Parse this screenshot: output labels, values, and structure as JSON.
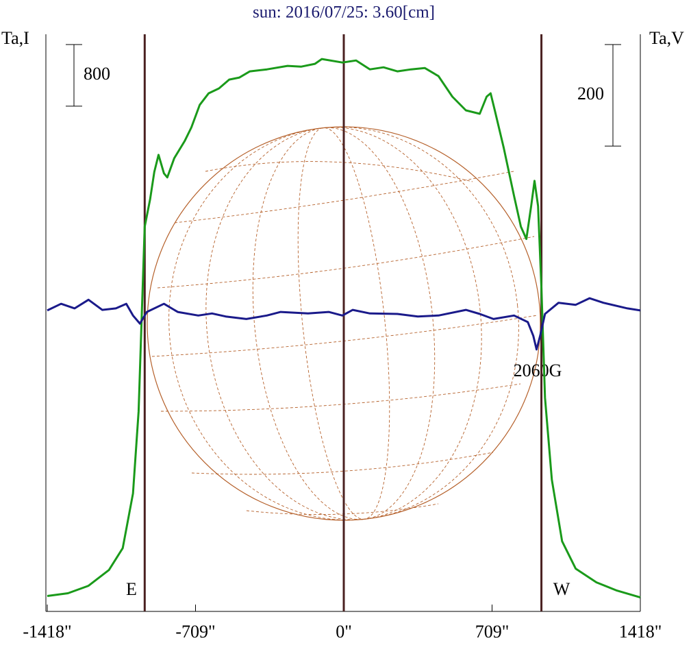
{
  "chart_data": {
    "type": "line",
    "title": "sun: 2016/07/25: 3.60[cm]",
    "ylabel": "Ta,I",
    "y2label": "Ta,V",
    "xlim": [
      -1418,
      1418
    ],
    "xticks": [
      {
        "value": -1418,
        "label": "-1418\""
      },
      {
        "value": -709,
        "label": "-709\""
      },
      {
        "value": 0,
        "label": "0\""
      },
      {
        "value": 709,
        "label": "709\""
      },
      {
        "value": 1418,
        "label": "1418\""
      }
    ],
    "ylim": [
      -200,
      7300
    ],
    "y2lim": [
      -590,
      547
    ],
    "scale_bars": [
      {
        "axis": "y",
        "value": 800
      },
      {
        "axis": "y2",
        "value": 200
      }
    ],
    "limb_lines": [
      -952,
      0,
      945
    ],
    "limb_color": "#4a2020",
    "annotations": [
      "E",
      "W",
      "2060G"
    ],
    "series": [
      {
        "color": "#1a9a1a",
        "axis": "y",
        "x": [
          -1418,
          -1319,
          -1221,
          -1123,
          -1057,
          -1008,
          -981,
          -965,
          -952,
          -926,
          -906,
          -886,
          -860,
          -844,
          -811,
          -761,
          -729,
          -689,
          -646,
          -597,
          -548,
          -499,
          -449,
          -367,
          -269,
          -203,
          -138,
          -105,
          -7,
          59,
          125,
          190,
          256,
          322,
          387,
          453,
          519,
          584,
          650,
          683,
          702,
          722,
          765,
          814,
          847,
          873,
          896,
          912,
          929,
          945,
          962,
          995,
          1044,
          1109,
          1208,
          1306,
          1418
        ],
        "values": [
          0,
          36,
          133,
          338,
          622,
          1333,
          2400,
          3733,
          4800,
          5156,
          5511,
          5733,
          5493,
          5440,
          5689,
          5911,
          6089,
          6382,
          6533,
          6596,
          6711,
          6738,
          6818,
          6844,
          6889,
          6880,
          6916,
          6978,
          6933,
          6960,
          6844,
          6871,
          6818,
          6844,
          6862,
          6756,
          6489,
          6311,
          6267,
          6489,
          6533,
          6311,
          5822,
          5200,
          4800,
          4640,
          5067,
          5396,
          5067,
          4000,
          2578,
          1511,
          711,
          356,
          178,
          71,
          -18
        ]
      },
      {
        "color": "#1a1a8a",
        "axis": "y2",
        "x": [
          -1418,
          -1352,
          -1287,
          -1221,
          -1155,
          -1090,
          -1040,
          -1008,
          -975,
          -942,
          -860,
          -794,
          -696,
          -630,
          -565,
          -466,
          -368,
          -302,
          -171,
          -72,
          -7,
          43,
          125,
          256,
          354,
          453,
          584,
          650,
          716,
          814,
          880,
          906,
          922,
          939,
          962,
          1027,
          1109,
          1175,
          1241,
          1356,
          1418
        ],
        "values": [
          3,
          16,
          7,
          24,
          4,
          7,
          16,
          -7,
          -23,
          0,
          16,
          0,
          -7,
          -3,
          -9,
          -14,
          -7,
          0,
          -3,
          0,
          -7,
          4,
          -3,
          -4,
          -9,
          -7,
          4,
          -4,
          -14,
          -7,
          -20,
          -47,
          -74,
          -47,
          -4,
          18,
          14,
          27,
          18,
          7,
          3
        ]
      }
    ]
  }
}
